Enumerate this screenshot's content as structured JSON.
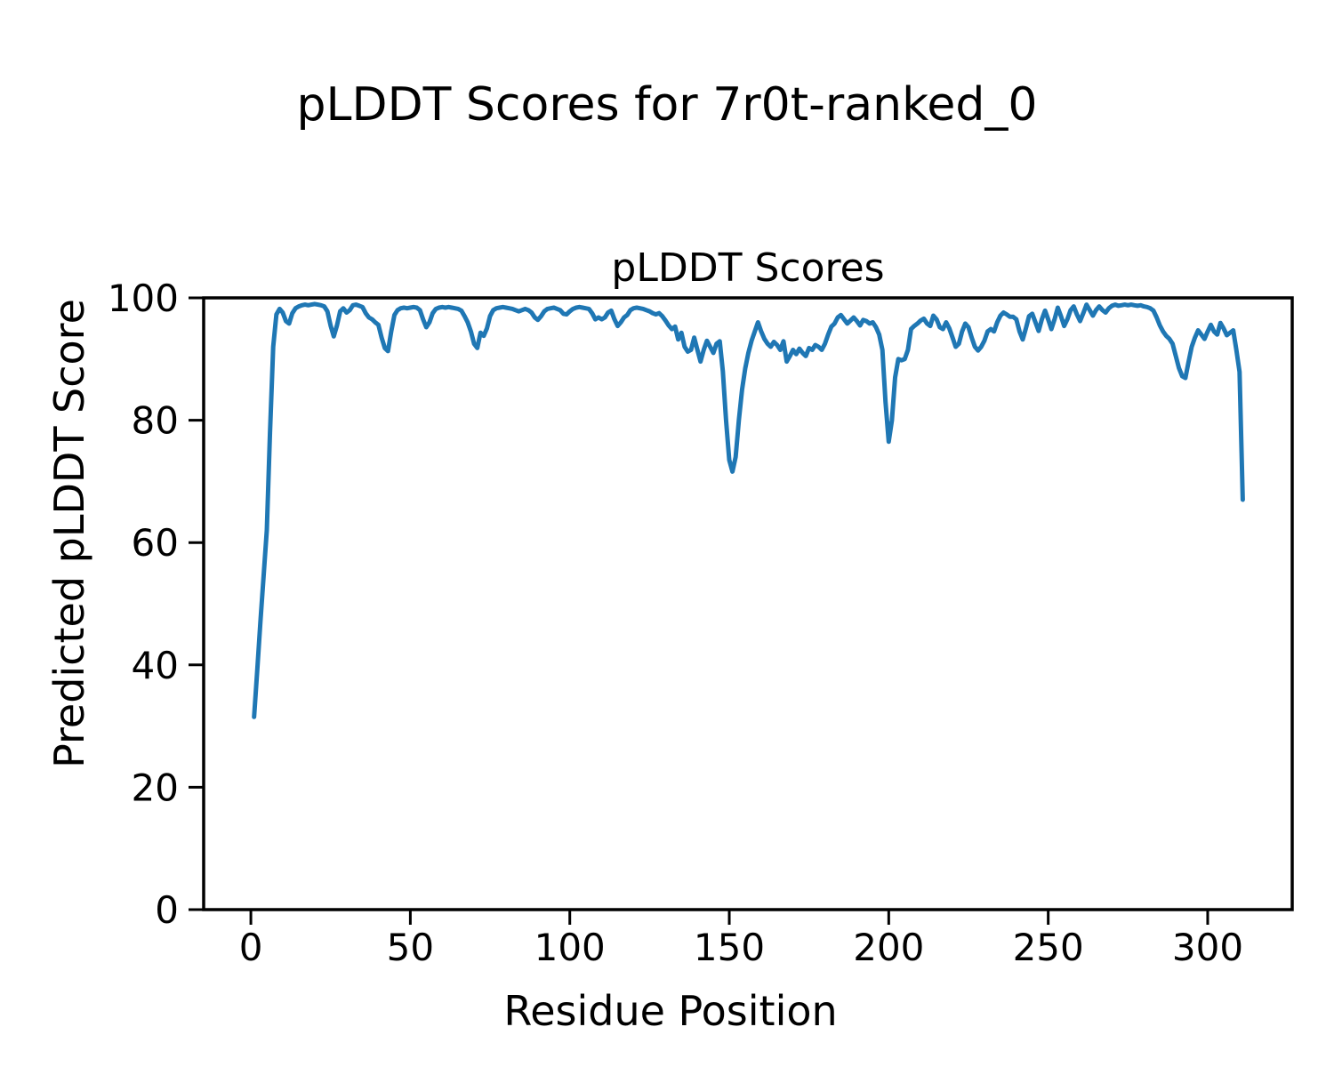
{
  "figure": {
    "suptitle": "pLDDT Scores for 7r0t-ranked_0",
    "background_color": "#ffffff",
    "text_color": "#000000"
  },
  "chart_data": {
    "type": "line",
    "title": "pLDDT Scores",
    "xlabel": "Residue Position",
    "ylabel": "Predicted pLDDT Score",
    "x_ticks": [
      0,
      50,
      100,
      150,
      200,
      250,
      300
    ],
    "y_ticks": [
      0,
      20,
      40,
      60,
      80,
      100
    ],
    "xlim": [
      -14.8,
      326.5
    ],
    "ylim": [
      0,
      100
    ],
    "grid": false,
    "legend_position": "none",
    "line_color": "#1f77b4",
    "spine_color": "#000000",
    "series": [
      {
        "name": "pLDDT",
        "x_start": 1,
        "x_step": 1,
        "values": [
          31.5,
          39.0,
          47.0,
          54.5,
          62.0,
          78.0,
          92.0,
          97.3,
          98.2,
          97.6,
          96.2,
          95.8,
          97.5,
          98.3,
          98.6,
          98.8,
          98.9,
          98.8,
          98.9,
          99.0,
          98.9,
          98.8,
          98.6,
          97.8,
          95.5,
          93.7,
          95.5,
          97.8,
          98.3,
          97.6,
          98.0,
          98.8,
          98.9,
          98.7,
          98.5,
          97.5,
          96.8,
          96.5,
          96.0,
          95.6,
          93.5,
          91.8,
          91.3,
          94.5,
          97.2,
          98.0,
          98.3,
          98.4,
          98.3,
          98.4,
          98.5,
          98.4,
          98.0,
          96.5,
          95.2,
          96.0,
          97.5,
          98.2,
          98.4,
          98.5,
          98.4,
          98.5,
          98.4,
          98.3,
          98.2,
          97.9,
          97.0,
          96.0,
          94.5,
          92.5,
          91.8,
          94.3,
          93.8,
          95.0,
          97.0,
          98.0,
          98.3,
          98.4,
          98.5,
          98.4,
          98.3,
          98.2,
          98.0,
          97.8,
          98.0,
          98.2,
          98.0,
          97.6,
          96.8,
          96.4,
          97.0,
          97.8,
          98.2,
          98.3,
          98.4,
          98.2,
          98.0,
          97.4,
          97.3,
          97.8,
          98.2,
          98.4,
          98.5,
          98.4,
          98.3,
          98.2,
          97.5,
          96.5,
          96.8,
          96.5,
          96.8,
          97.6,
          97.9,
          96.5,
          95.4,
          96.0,
          96.8,
          97.2,
          98.0,
          98.3,
          98.4,
          98.3,
          98.2,
          98.0,
          97.8,
          97.5,
          97.3,
          97.5,
          97.0,
          96.3,
          95.5,
          94.9,
          95.3,
          93.2,
          94.3,
          92.0,
          91.2,
          91.5,
          93.5,
          91.5,
          89.6,
          91.5,
          93.0,
          92.0,
          91.0,
          92.5,
          92.9,
          88.0,
          80.0,
          73.5,
          71.6,
          74.0,
          80.0,
          85.0,
          88.5,
          91.0,
          93.0,
          94.5,
          96.0,
          94.5,
          93.3,
          92.5,
          92.0,
          92.8,
          92.3,
          91.5,
          92.9,
          89.6,
          90.5,
          91.5,
          90.8,
          91.7,
          91.0,
          90.5,
          91.8,
          91.5,
          92.3,
          92.0,
          91.5,
          92.5,
          94.0,
          95.3,
          95.8,
          96.8,
          97.2,
          96.5,
          95.8,
          96.3,
          96.8,
          96.2,
          95.5,
          96.4,
          96.2,
          95.8,
          96.0,
          95.2,
          94.0,
          91.5,
          83.0,
          76.5,
          80.0,
          87.0,
          90.0,
          89.8,
          90.0,
          91.5,
          94.9,
          95.4,
          95.8,
          96.3,
          96.6,
          95.8,
          95.4,
          97.1,
          96.5,
          95.2,
          94.9,
          96.0,
          95.0,
          93.5,
          92.0,
          92.5,
          94.5,
          95.8,
          95.2,
          93.5,
          92.0,
          91.4,
          92.0,
          93.0,
          94.5,
          94.9,
          94.5,
          96.0,
          97.1,
          97.6,
          97.3,
          96.9,
          96.9,
          96.5,
          94.5,
          93.2,
          95.0,
          97.0,
          97.4,
          96.0,
          94.6,
          96.5,
          97.9,
          96.5,
          94.9,
          96.5,
          98.4,
          97.0,
          95.4,
          96.5,
          98.0,
          98.6,
          97.3,
          96.2,
          97.5,
          98.9,
          98.0,
          97.1,
          98.0,
          98.6,
          98.0,
          97.6,
          98.3,
          98.7,
          98.9,
          98.7,
          98.8,
          98.9,
          98.8,
          98.9,
          98.8,
          98.7,
          98.8,
          98.6,
          98.5,
          98.3,
          97.9,
          96.8,
          95.5,
          94.5,
          93.8,
          93.3,
          92.5,
          90.5,
          88.5,
          87.2,
          86.9,
          89.5,
          92.0,
          93.5,
          94.7,
          94.0,
          93.3,
          94.5,
          95.6,
          94.5,
          94.0,
          95.9,
          95.0,
          93.9,
          94.3,
          94.7,
          91.5,
          87.9,
          67.0
        ]
      }
    ]
  }
}
